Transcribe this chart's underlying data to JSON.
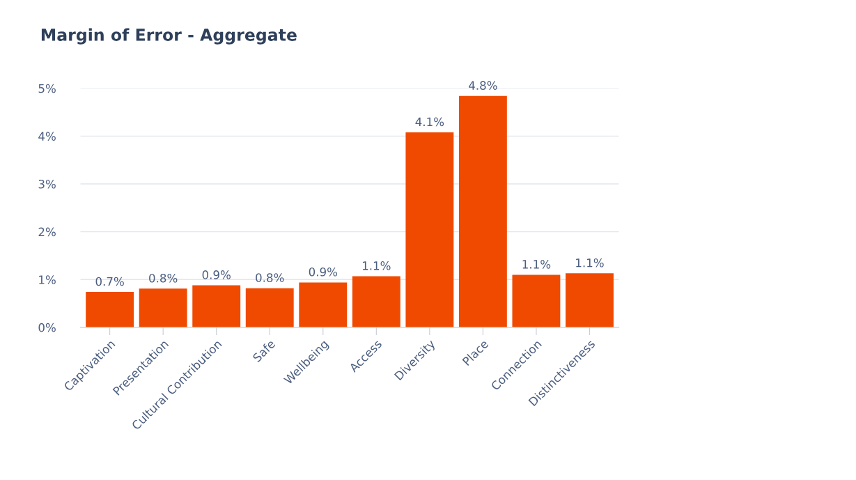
{
  "chart_data": {
    "type": "bar",
    "title": "Margin of Error - Aggregate",
    "categories": [
      "Captivation",
      "Presentation",
      "Cultural Contribution",
      "Safe",
      "Wellbeing",
      "Access",
      "Diversity",
      "Place",
      "Connection",
      "Distinctiveness"
    ],
    "values": [
      0.74,
      0.81,
      0.88,
      0.82,
      0.94,
      1.07,
      4.08,
      4.84,
      1.1,
      1.13
    ],
    "value_labels": [
      "0.7%",
      "0.8%",
      "0.9%",
      "0.8%",
      "0.9%",
      "1.1%",
      "4.1%",
      "4.8%",
      "1.1%",
      "1.1%"
    ],
    "color": "#f04a00",
    "ylim": [
      0,
      5
    ],
    "yticks": [
      {
        "value": 0,
        "label": "0%"
      },
      {
        "value": 1,
        "label": "1%"
      },
      {
        "value": 2,
        "label": "2%"
      },
      {
        "value": 3,
        "label": "3%"
      },
      {
        "value": 4,
        "label": "4%"
      },
      {
        "value": 5,
        "label": "5%"
      }
    ],
    "grid": "y",
    "legend": false
  }
}
